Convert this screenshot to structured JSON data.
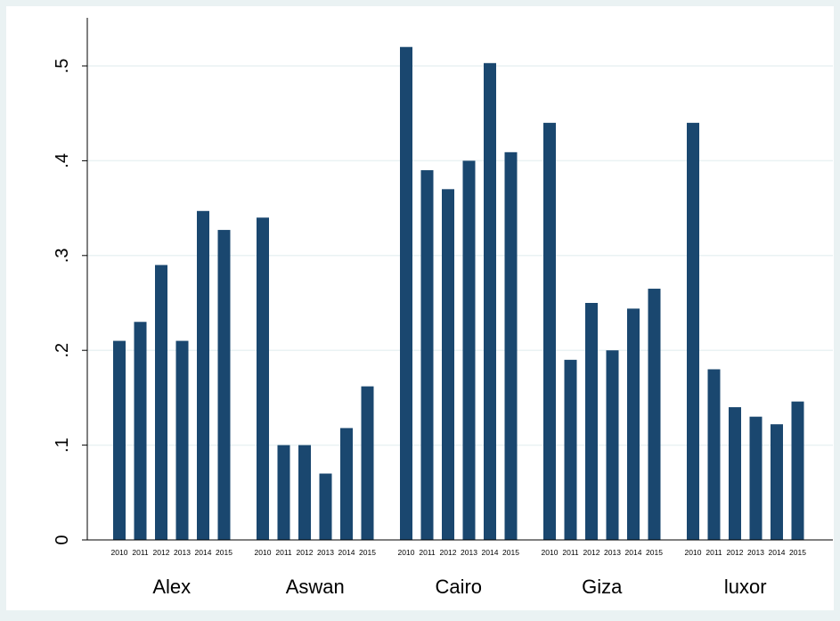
{
  "colors": {
    "page_background": "#eaf2f3",
    "plot_background": "#ffffff",
    "bar": "#1a476f",
    "grid": "#eaf2f3",
    "axis": "#000000"
  },
  "chart_data": {
    "type": "bar",
    "title": "",
    "xlabel": "",
    "ylabel": "",
    "ylim": [
      0,
      0.55
    ],
    "yticks": [
      0,
      0.1,
      0.2,
      0.3,
      0.4,
      0.5
    ],
    "yticklabels": [
      "0",
      ".1",
      ".2",
      ".3",
      ".4",
      ".5"
    ],
    "grid": true,
    "legend": "none",
    "years": [
      "2010",
      "2011",
      "2012",
      "2013",
      "2014",
      "2015"
    ],
    "groups": [
      {
        "name": "Alex",
        "values": [
          0.21,
          0.23,
          0.29,
          0.21,
          0.347,
          0.327
        ]
      },
      {
        "name": "Aswan",
        "values": [
          0.34,
          0.1,
          0.1,
          0.07,
          0.118,
          0.162
        ]
      },
      {
        "name": "Cairo",
        "values": [
          0.52,
          0.39,
          0.37,
          0.4,
          0.503,
          0.409
        ]
      },
      {
        "name": "Giza",
        "values": [
          0.44,
          0.19,
          0.25,
          0.2,
          0.244,
          0.265
        ]
      },
      {
        "name": "luxor",
        "values": [
          0.44,
          0.18,
          0.14,
          0.13,
          0.122,
          0.146
        ]
      }
    ]
  }
}
